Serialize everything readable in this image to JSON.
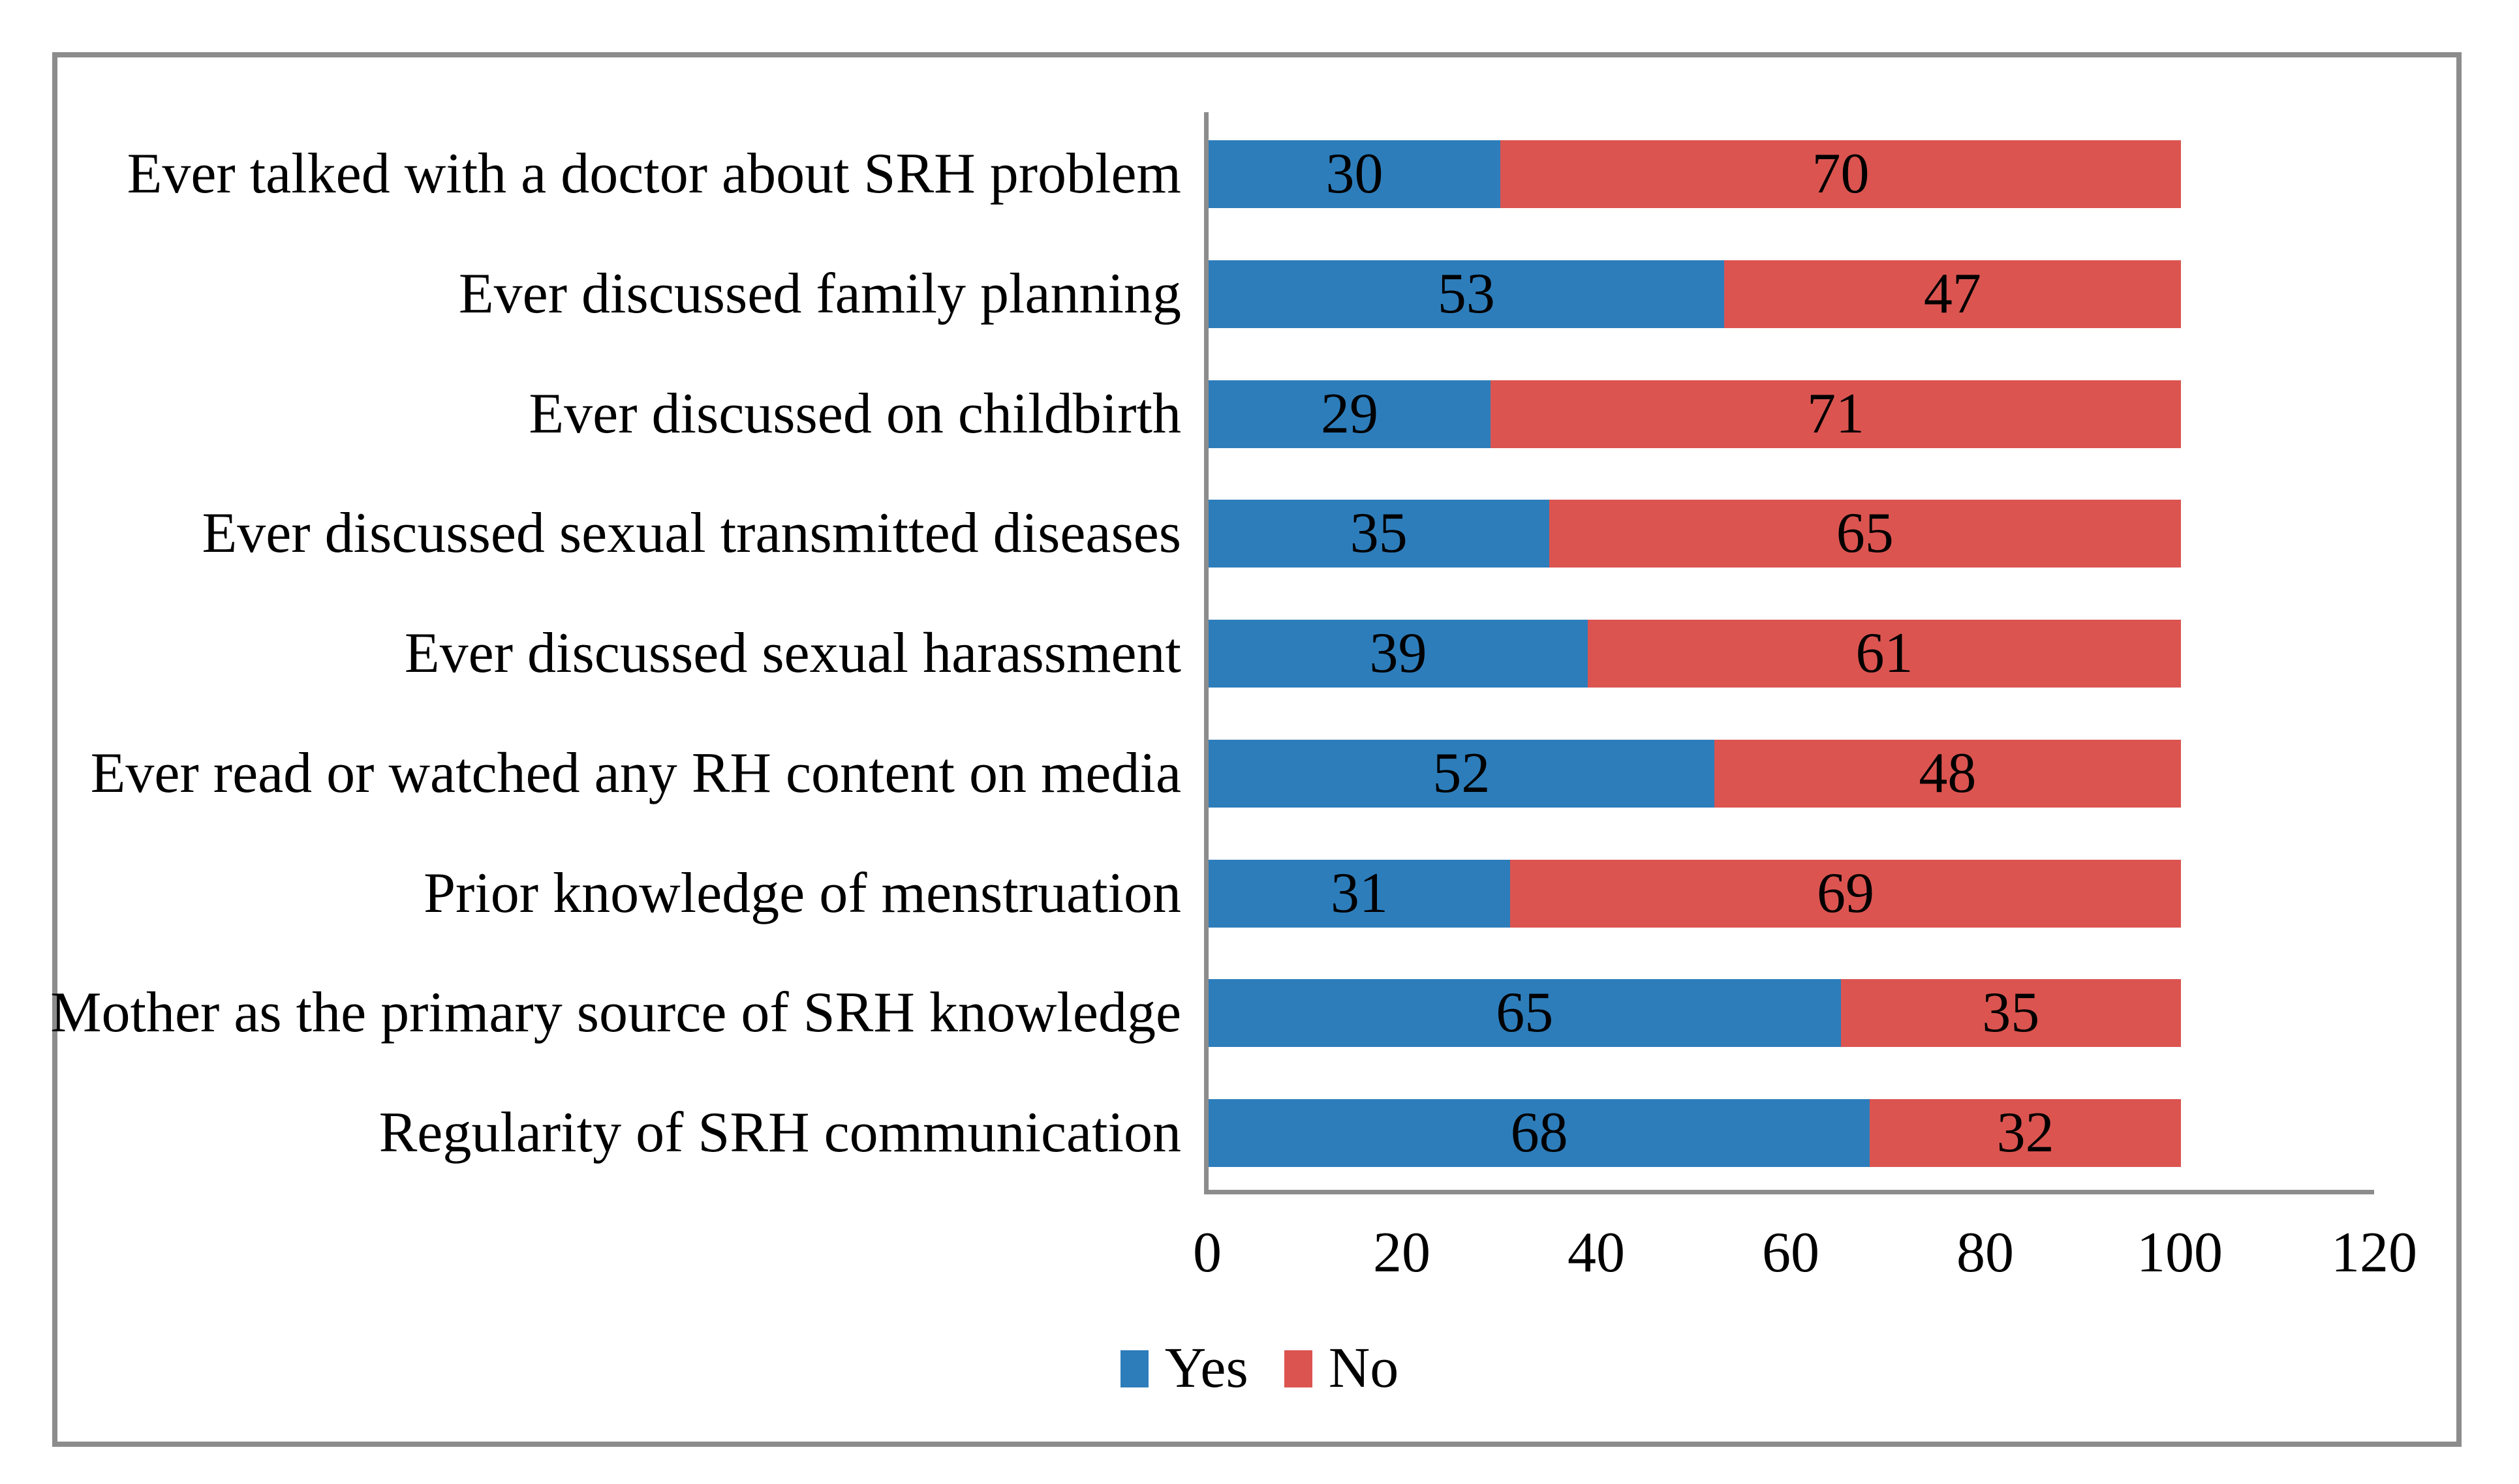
{
  "chart_data": {
    "type": "bar",
    "orientation": "horizontal",
    "stacked": true,
    "title": "",
    "xlabel": "",
    "ylabel": "",
    "categories": [
      "Ever talked with a doctor about SRH problem",
      "Ever discussed family planning",
      "Ever discussed on childbirth",
      "Ever discussed sexual transmitted diseases",
      "Ever discussed sexual harassment",
      "Ever read or watched any RH content on media",
      "Prior knowledge of menstruation",
      "Mother as the primary source of SRH knowledge",
      "Regularity of SRH communication"
    ],
    "series": [
      {
        "name": "Yes",
        "color": "#2D7DBB",
        "values": [
          30,
          53,
          29,
          35,
          39,
          52,
          31,
          65,
          68
        ]
      },
      {
        "name": "No",
        "color": "#DB5450",
        "values": [
          70,
          47,
          71,
          65,
          61,
          48,
          69,
          35,
          32
        ]
      }
    ],
    "xlim": [
      0,
      120
    ],
    "x_ticks": [
      "0",
      "20",
      "40",
      "60",
      "80",
      "100",
      "120"
    ],
    "grid": false,
    "legend_position": "bottom-center",
    "value_labels_shown": true
  },
  "style": {
    "frame_border_color": "#8C8C8C",
    "axis_color": "#8C8C8C",
    "text_color": "#000000",
    "background_color": "#FFFFFF"
  }
}
